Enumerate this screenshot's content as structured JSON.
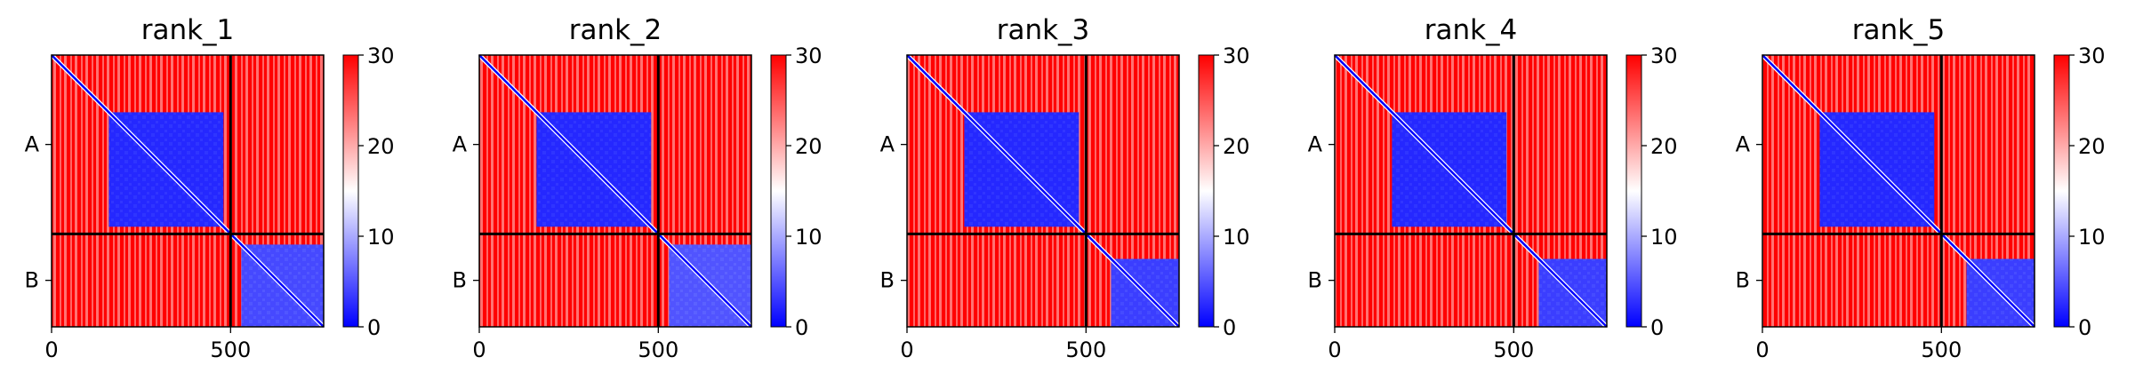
{
  "chart_data": [
    {
      "type": "heatmap",
      "title": "rank_1",
      "x_ticks": [
        0,
        500
      ],
      "y_tick_labels": [
        "A",
        "B"
      ],
      "colorbar": {
        "ticks": [
          0,
          10,
          20,
          30
        ],
        "range": [
          0,
          30
        ],
        "colors": [
          "#0000ff",
          "#ffffff",
          "#ff0000"
        ]
      },
      "chain_boundary": 500,
      "total_length": 760,
      "blocks": [
        {
          "rows": [
            160,
            480
          ],
          "cols": [
            160,
            480
          ],
          "value": 3
        },
        {
          "rows": [
            530,
            760
          ],
          "cols": [
            530,
            760
          ],
          "value": 6
        }
      ]
    },
    {
      "type": "heatmap",
      "title": "rank_2",
      "x_ticks": [
        0,
        500
      ],
      "y_tick_labels": [
        "A",
        "B"
      ],
      "colorbar": {
        "ticks": [
          0,
          10,
          20,
          30
        ],
        "range": [
          0,
          30
        ],
        "colors": [
          "#0000ff",
          "#ffffff",
          "#ff0000"
        ]
      },
      "chain_boundary": 500,
      "total_length": 760,
      "blocks": [
        {
          "rows": [
            160,
            480
          ],
          "cols": [
            160,
            480
          ],
          "value": 3
        },
        {
          "rows": [
            530,
            760
          ],
          "cols": [
            530,
            760
          ],
          "value": 7
        }
      ]
    },
    {
      "type": "heatmap",
      "title": "rank_3",
      "x_ticks": [
        0,
        500
      ],
      "y_tick_labels": [
        "A",
        "B"
      ],
      "colorbar": {
        "ticks": [
          0,
          10,
          20,
          30
        ],
        "range": [
          0,
          30
        ],
        "colors": [
          "#0000ff",
          "#ffffff",
          "#ff0000"
        ]
      },
      "chain_boundary": 500,
      "total_length": 760,
      "blocks": [
        {
          "rows": [
            160,
            480
          ],
          "cols": [
            160,
            480
          ],
          "value": 3
        },
        {
          "rows": [
            570,
            760
          ],
          "cols": [
            570,
            760
          ],
          "value": 5
        }
      ]
    },
    {
      "type": "heatmap",
      "title": "rank_4",
      "x_ticks": [
        0,
        500
      ],
      "y_tick_labels": [
        "A",
        "B"
      ],
      "colorbar": {
        "ticks": [
          0,
          10,
          20,
          30
        ],
        "range": [
          0,
          30
        ],
        "colors": [
          "#0000ff",
          "#ffffff",
          "#ff0000"
        ]
      },
      "chain_boundary": 500,
      "total_length": 760,
      "blocks": [
        {
          "rows": [
            160,
            480
          ],
          "cols": [
            160,
            480
          ],
          "value": 3
        },
        {
          "rows": [
            570,
            760
          ],
          "cols": [
            570,
            760
          ],
          "value": 5
        }
      ]
    },
    {
      "type": "heatmap",
      "title": "rank_5",
      "x_ticks": [
        0,
        500
      ],
      "y_tick_labels": [
        "A",
        "B"
      ],
      "colorbar": {
        "ticks": [
          0,
          10,
          20,
          30
        ],
        "range": [
          0,
          30
        ],
        "colors": [
          "#0000ff",
          "#ffffff",
          "#ff0000"
        ]
      },
      "chain_boundary": 500,
      "total_length": 760,
      "blocks": [
        {
          "rows": [
            160,
            480
          ],
          "cols": [
            160,
            480
          ],
          "value": 3
        },
        {
          "rows": [
            570,
            760
          ],
          "cols": [
            570,
            760
          ],
          "value": 5
        }
      ]
    }
  ]
}
